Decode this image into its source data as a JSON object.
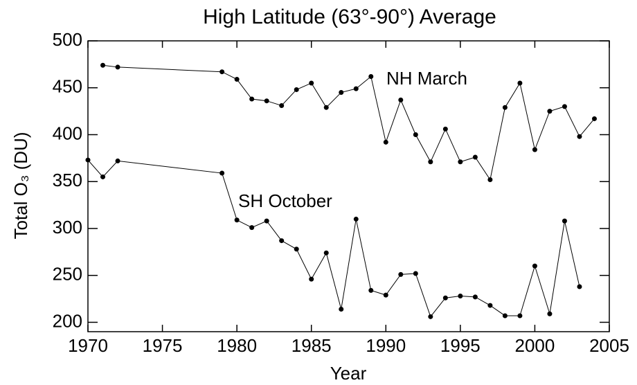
{
  "chart_data": {
    "type": "line",
    "title": "High Latitude (63°-90°) Average",
    "x_label": "Year",
    "y_label": "Total O₃ (DU)",
    "xlim": [
      1970,
      2005
    ],
    "xticks": [
      1970,
      1975,
      1980,
      1985,
      1990,
      1995,
      2000,
      2005
    ],
    "ylim": [
      190,
      500
    ],
    "yticks": [
      200,
      250,
      300,
      350,
      400,
      450,
      500
    ],
    "series": [
      {
        "name": "NH March",
        "color": "#000000",
        "x": [
          1971,
          1972,
          1979,
          1980,
          1981,
          1982,
          1983,
          1984,
          1985,
          1986,
          1987,
          1988,
          1989,
          1990,
          1991,
          1992,
          1993,
          1994,
          1995,
          1996,
          1997,
          1998,
          1999,
          2000,
          2001,
          2002,
          2003,
          2004
        ],
        "values": [
          474,
          472,
          467,
          459,
          438,
          436,
          431,
          448,
          455,
          429,
          445,
          449,
          462,
          392,
          437,
          400,
          371,
          406,
          371,
          376,
          352,
          429,
          455,
          384,
          425,
          430,
          398,
          417
        ]
      },
      {
        "name": "SH October",
        "color": "#000000",
        "x": [
          1970,
          1971,
          1972,
          1979,
          1980,
          1981,
          1982,
          1983,
          1984,
          1985,
          1986,
          1987,
          1988,
          1989,
          1990,
          1991,
          1992,
          1993,
          1994,
          1995,
          1996,
          1997,
          1998,
          1999,
          2000,
          2001,
          2002,
          2003
        ],
        "values": [
          373,
          355,
          372,
          359,
          309,
          301,
          308,
          287,
          278,
          246,
          274,
          214,
          310,
          234,
          229,
          251,
          252,
          206,
          226,
          228,
          227,
          218,
          207,
          207,
          260,
          209,
          308,
          238
        ]
      }
    ]
  }
}
